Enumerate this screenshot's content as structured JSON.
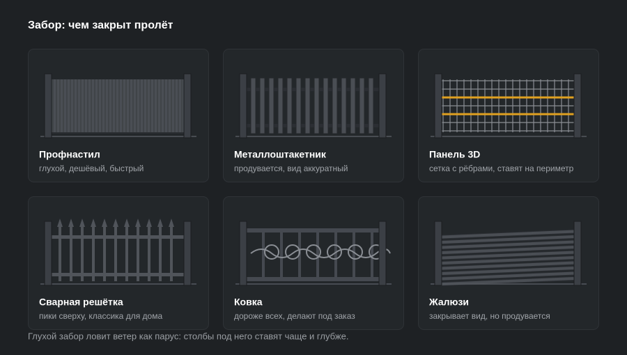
{
  "header": {
    "title": "Забор: чем закрыт пролёт"
  },
  "cards": [
    {
      "title": "Профнастил",
      "subtitle": "глухой, дешёвый, быстрый"
    },
    {
      "title": "Металлоштакетник",
      "subtitle": "продувается, вид аккуратный"
    },
    {
      "title": "Панель 3D",
      "subtitle": "сетка с рёбрами, ставят на периметр"
    },
    {
      "title": "Сварная решётка",
      "subtitle": "пики сверху, классика для дома"
    },
    {
      "title": "Ковка",
      "subtitle": "дороже всех, делают под заказ"
    },
    {
      "title": "Жалюзи",
      "subtitle": "закрывает вид, но продувается"
    }
  ],
  "footer": {
    "note": "Глухой забор ловит ветер как парус: столбы под него ставят чаще и глубже."
  }
}
